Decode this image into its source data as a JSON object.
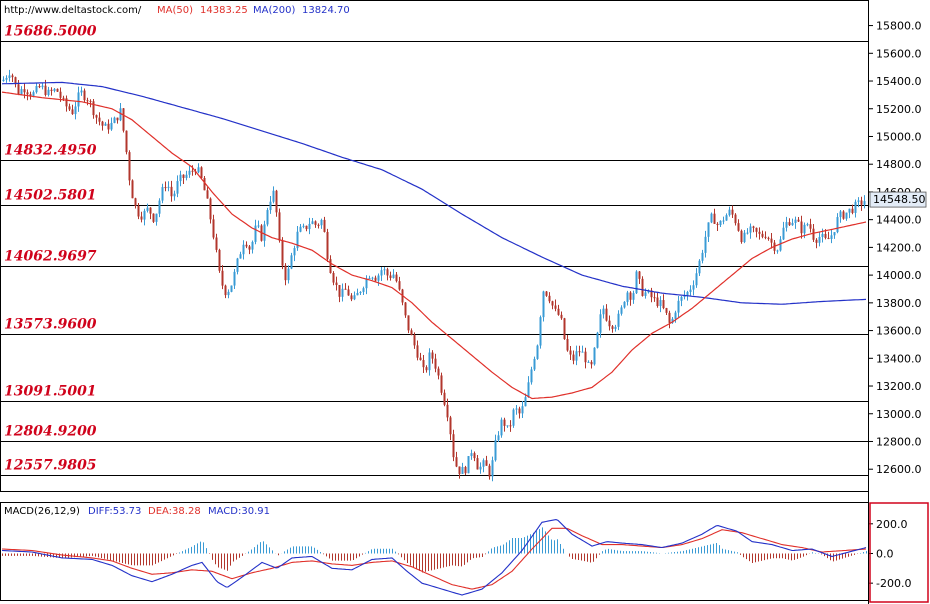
{
  "header": {
    "url": "http://www.deltastock.com/",
    "ma50_label": "MA(50)",
    "ma50_value": "14383.25",
    "ma200_label": "MA(200)",
    "ma200_value": "13824.70"
  },
  "macd_header": {
    "label": "MACD(26,12,9)",
    "diff": "DIFF:53.73",
    "dea": "DEA:38.28",
    "macd": "MACD:30.91"
  },
  "colors": {
    "up": "#3a9bd5",
    "down": "#b2362c",
    "ma50": "#e0302a",
    "ma200": "#2331c8",
    "level_text": "#d0021b",
    "price_tag": "#e3ecf7",
    "macd_highlight": "#d0021b"
  },
  "chart_data": {
    "type": "candlestick",
    "ylim": [
      12450,
      15970
    ],
    "y_ticks": [
      "12600.0",
      "12800.0",
      "13000.0",
      "13200.0",
      "13400.0",
      "13600.0",
      "13800.0",
      "14000.0",
      "14200.0",
      "14400.0",
      "14600.0",
      "14800.0",
      "15000.0",
      "15200.0",
      "15400.0",
      "15600.0",
      "15800.0"
    ],
    "levels": [
      {
        "label": "15686.5000",
        "value": 15686.5
      },
      {
        "label": "14832.4950",
        "value": 14832.495
      },
      {
        "label": "14502.5801",
        "value": 14502.5801
      },
      {
        "label": "14062.9697",
        "value": 14062.9697
      },
      {
        "label": "13573.9600",
        "value": 13573.96
      },
      {
        "label": "13091.5001",
        "value": 13091.5001
      },
      {
        "label": "12804.9200",
        "value": 12804.92
      },
      {
        "label": "12557.9805",
        "value": 12557.9805
      }
    ],
    "last_price": {
      "label": "14548.50",
      "value": 14548.5
    },
    "close_path": [
      [
        0,
        15400
      ],
      [
        8,
        15480
      ],
      [
        15,
        15320
      ],
      [
        22,
        15350
      ],
      [
        30,
        15300
      ],
      [
        38,
        15360
      ],
      [
        46,
        15310
      ],
      [
        54,
        15340
      ],
      [
        62,
        15230
      ],
      [
        70,
        15180
      ],
      [
        78,
        15320
      ],
      [
        86,
        15270
      ],
      [
        94,
        15140
      ],
      [
        102,
        15060
      ],
      [
        110,
        15090
      ],
      [
        118,
        15180
      ],
      [
        123,
        14950
      ],
      [
        128,
        14640
      ],
      [
        134,
        14460
      ],
      [
        140,
        14430
      ],
      [
        146,
        14480
      ],
      [
        152,
        14400
      ],
      [
        158,
        14570
      ],
      [
        164,
        14680
      ],
      [
        170,
        14550
      ],
      [
        176,
        14680
      ],
      [
        182,
        14710
      ],
      [
        188,
        14740
      ],
      [
        194,
        14780
      ],
      [
        200,
        14670
      ],
      [
        206,
        14490
      ],
      [
        212,
        14250
      ],
      [
        218,
        13960
      ],
      [
        224,
        13870
      ],
      [
        230,
        13950
      ],
      [
        236,
        14120
      ],
      [
        242,
        14270
      ],
      [
        248,
        14180
      ],
      [
        254,
        14360
      ],
      [
        260,
        14260
      ],
      [
        266,
        14530
      ],
      [
        272,
        14600
      ],
      [
        278,
        14140
      ],
      [
        284,
        13960
      ],
      [
        290,
        14170
      ],
      [
        296,
        14320
      ],
      [
        302,
        14330
      ],
      [
        308,
        14390
      ],
      [
        314,
        14360
      ],
      [
        320,
        14400
      ],
      [
        326,
        14100
      ],
      [
        332,
        13950
      ],
      [
        338,
        13850
      ],
      [
        344,
        13900
      ],
      [
        350,
        13800
      ],
      [
        356,
        13870
      ],
      [
        362,
        13950
      ],
      [
        368,
        14020
      ],
      [
        374,
        13980
      ],
      [
        380,
        14050
      ],
      [
        386,
        13990
      ],
      [
        392,
        14010
      ],
      [
        398,
        13850
      ],
      [
        404,
        13660
      ],
      [
        410,
        13530
      ],
      [
        416,
        13420
      ],
      [
        422,
        13280
      ],
      [
        428,
        13440
      ],
      [
        434,
        13330
      ],
      [
        440,
        13150
      ],
      [
        446,
        12980
      ],
      [
        452,
        12650
      ],
      [
        458,
        12580
      ],
      [
        464,
        12610
      ],
      [
        470,
        12760
      ],
      [
        476,
        12600
      ],
      [
        482,
        12640
      ],
      [
        488,
        12560
      ],
      [
        494,
        12820
      ],
      [
        500,
        12960
      ],
      [
        506,
        12870
      ],
      [
        512,
        13040
      ],
      [
        518,
        12990
      ],
      [
        524,
        13130
      ],
      [
        530,
        13360
      ],
      [
        536,
        13540
      ],
      [
        540,
        13900
      ],
      [
        546,
        13860
      ],
      [
        552,
        13740
      ],
      [
        558,
        13700
      ],
      [
        564,
        13460
      ],
      [
        570,
        13380
      ],
      [
        576,
        13460
      ],
      [
        582,
        13420
      ],
      [
        588,
        13300
      ],
      [
        594,
        13520
      ],
      [
        600,
        13780
      ],
      [
        606,
        13660
      ],
      [
        612,
        13640
      ],
      [
        618,
        13720
      ],
      [
        624,
        13890
      ],
      [
        630,
        13840
      ],
      [
        634,
        14000
      ],
      [
        640,
        13880
      ],
      [
        646,
        13860
      ],
      [
        652,
        13820
      ],
      [
        658,
        13790
      ],
      [
        664,
        13710
      ],
      [
        668,
        13630
      ],
      [
        674,
        13780
      ],
      [
        680,
        13840
      ],
      [
        686,
        13880
      ],
      [
        692,
        13970
      ],
      [
        698,
        14120
      ],
      [
        704,
        14310
      ],
      [
        710,
        14430
      ],
      [
        716,
        14350
      ],
      [
        722,
        14420
      ],
      [
        728,
        14460
      ],
      [
        734,
        14380
      ],
      [
        740,
        14250
      ],
      [
        746,
        14320
      ],
      [
        752,
        14310
      ],
      [
        758,
        14280
      ],
      [
        764,
        14300
      ],
      [
        770,
        14220
      ],
      [
        776,
        14190
      ],
      [
        782,
        14360
      ],
      [
        788,
        14400
      ],
      [
        794,
        14380
      ],
      [
        800,
        14320
      ],
      [
        806,
        14380
      ],
      [
        812,
        14260
      ],
      [
        818,
        14280
      ],
      [
        824,
        14240
      ],
      [
        830,
        14300
      ],
      [
        836,
        14420
      ],
      [
        842,
        14440
      ],
      [
        848,
        14470
      ],
      [
        854,
        14500
      ],
      [
        860,
        14530
      ],
      [
        864,
        14548
      ]
    ],
    "ma50_path": [
      [
        0,
        15320
      ],
      [
        40,
        15280
      ],
      [
        80,
        15250
      ],
      [
        110,
        15200
      ],
      [
        130,
        15120
      ],
      [
        150,
        15000
      ],
      [
        170,
        14880
      ],
      [
        190,
        14780
      ],
      [
        210,
        14600
      ],
      [
        230,
        14440
      ],
      [
        250,
        14340
      ],
      [
        270,
        14270
      ],
      [
        290,
        14230
      ],
      [
        310,
        14180
      ],
      [
        330,
        14080
      ],
      [
        350,
        14000
      ],
      [
        370,
        13960
      ],
      [
        390,
        13910
      ],
      [
        410,
        13800
      ],
      [
        430,
        13660
      ],
      [
        450,
        13540
      ],
      [
        470,
        13420
      ],
      [
        490,
        13300
      ],
      [
        510,
        13190
      ],
      [
        530,
        13110
      ],
      [
        550,
        13120
      ],
      [
        570,
        13150
      ],
      [
        590,
        13190
      ],
      [
        610,
        13300
      ],
      [
        630,
        13460
      ],
      [
        650,
        13580
      ],
      [
        670,
        13660
      ],
      [
        690,
        13760
      ],
      [
        710,
        13880
      ],
      [
        730,
        14000
      ],
      [
        750,
        14120
      ],
      [
        770,
        14200
      ],
      [
        790,
        14260
      ],
      [
        810,
        14300
      ],
      [
        830,
        14330
      ],
      [
        864,
        14383
      ]
    ],
    "ma200_path": [
      [
        0,
        15380
      ],
      [
        60,
        15390
      ],
      [
        100,
        15360
      ],
      [
        140,
        15290
      ],
      [
        180,
        15210
      ],
      [
        220,
        15130
      ],
      [
        260,
        15040
      ],
      [
        300,
        14950
      ],
      [
        340,
        14850
      ],
      [
        380,
        14760
      ],
      [
        420,
        14620
      ],
      [
        460,
        14440
      ],
      [
        500,
        14270
      ],
      [
        540,
        14130
      ],
      [
        580,
        14000
      ],
      [
        620,
        13920
      ],
      [
        660,
        13870
      ],
      [
        700,
        13840
      ],
      [
        740,
        13800
      ],
      [
        780,
        13790
      ],
      [
        820,
        13810
      ],
      [
        864,
        13825
      ]
    ],
    "macd": {
      "ylim": [
        -300,
        320
      ],
      "y_ticks": [
        "200.0",
        "0.0",
        "-200.0"
      ],
      "diff_path": [
        [
          0,
          20
        ],
        [
          30,
          10
        ],
        [
          60,
          -30
        ],
        [
          90,
          -40
        ],
        [
          110,
          -80
        ],
        [
          130,
          -150
        ],
        [
          150,
          -190
        ],
        [
          170,
          -140
        ],
        [
          190,
          -80
        ],
        [
          200,
          -60
        ],
        [
          215,
          -190
        ],
        [
          225,
          -230
        ],
        [
          240,
          -160
        ],
        [
          260,
          -60
        ],
        [
          275,
          -100
        ],
        [
          290,
          -30
        ],
        [
          310,
          -20
        ],
        [
          330,
          -100
        ],
        [
          350,
          -110
        ],
        [
          370,
          -40
        ],
        [
          390,
          -30
        ],
        [
          405,
          -120
        ],
        [
          420,
          -200
        ],
        [
          440,
          -240
        ],
        [
          460,
          -280
        ],
        [
          480,
          -240
        ],
        [
          500,
          -130
        ],
        [
          520,
          20
        ],
        [
          540,
          210
        ],
        [
          555,
          230
        ],
        [
          570,
          130
        ],
        [
          590,
          50
        ],
        [
          605,
          80
        ],
        [
          620,
          70
        ],
        [
          640,
          60
        ],
        [
          660,
          40
        ],
        [
          680,
          70
        ],
        [
          700,
          130
        ],
        [
          715,
          190
        ],
        [
          735,
          150
        ],
        [
          750,
          80
        ],
        [
          770,
          60
        ],
        [
          790,
          20
        ],
        [
          810,
          30
        ],
        [
          830,
          -20
        ],
        [
          864,
          40
        ]
      ],
      "dea_path": [
        [
          0,
          30
        ],
        [
          30,
          20
        ],
        [
          60,
          -10
        ],
        [
          90,
          -30
        ],
        [
          110,
          -50
        ],
        [
          130,
          -100
        ],
        [
          150,
          -140
        ],
        [
          170,
          -130
        ],
        [
          190,
          -110
        ],
        [
          210,
          -120
        ],
        [
          230,
          -170
        ],
        [
          250,
          -130
        ],
        [
          270,
          -100
        ],
        [
          290,
          -60
        ],
        [
          310,
          -50
        ],
        [
          330,
          -70
        ],
        [
          350,
          -80
        ],
        [
          370,
          -60
        ],
        [
          390,
          -50
        ],
        [
          410,
          -90
        ],
        [
          430,
          -150
        ],
        [
          450,
          -210
        ],
        [
          470,
          -240
        ],
        [
          490,
          -210
        ],
        [
          510,
          -120
        ],
        [
          530,
          30
        ],
        [
          550,
          170
        ],
        [
          565,
          170
        ],
        [
          580,
          120
        ],
        [
          600,
          60
        ],
        [
          620,
          60
        ],
        [
          640,
          50
        ],
        [
          660,
          40
        ],
        [
          680,
          60
        ],
        [
          700,
          100
        ],
        [
          720,
          160
        ],
        [
          740,
          140
        ],
        [
          760,
          100
        ],
        [
          780,
          60
        ],
        [
          800,
          40
        ],
        [
          820,
          10
        ],
        [
          864,
          30
        ]
      ]
    }
  }
}
